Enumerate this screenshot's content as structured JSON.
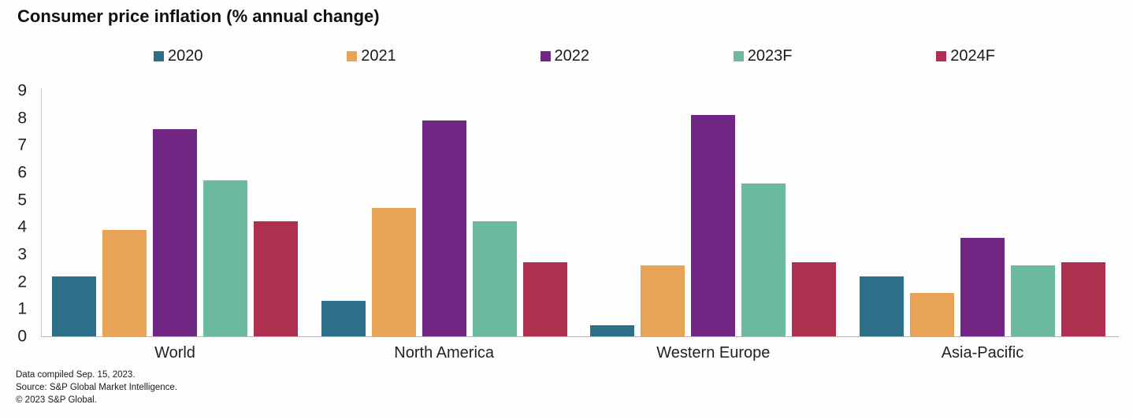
{
  "title": "Consumer price inflation (% annual change)",
  "footnotes": [
    "Data compiled Sep. 15, 2023.",
    "Source: S&P Global Market Intelligence.",
    "© 2023 S&P Global."
  ],
  "chart_data": {
    "type": "bar",
    "title": "Consumer price inflation (% annual change)",
    "xlabel": "",
    "ylabel": "",
    "ylim": [
      0,
      9
    ],
    "y_ticks": [
      "0",
      "1",
      "2",
      "3",
      "4",
      "5",
      "6",
      "7",
      "8",
      "9"
    ],
    "grid": false,
    "legend_position": "top",
    "categories": [
      "World",
      "North America",
      "Western Europe",
      "Asia-Pacific"
    ],
    "series": [
      {
        "name": "2020",
        "color": "#2D6E88",
        "values": [
          2.2,
          1.3,
          0.4,
          2.2
        ]
      },
      {
        "name": "2021",
        "color": "#E7A456",
        "values": [
          3.9,
          4.7,
          2.6,
          1.6
        ]
      },
      {
        "name": "2022",
        "color": "#712784",
        "values": [
          7.6,
          7.9,
          8.1,
          3.6
        ]
      },
      {
        "name": "2023F",
        "color": "#6CBA9D",
        "values": [
          5.7,
          4.2,
          5.6,
          2.6
        ]
      },
      {
        "name": "2024F",
        "color": "#AF2F50",
        "values": [
          4.2,
          2.7,
          2.7,
          2.7
        ]
      }
    ]
  }
}
